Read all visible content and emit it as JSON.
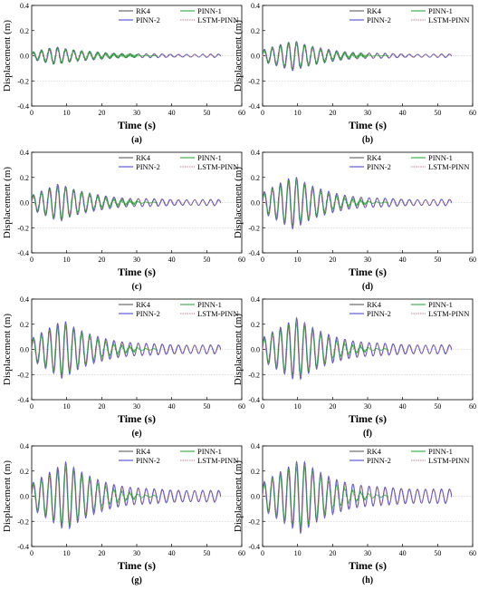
{
  "colors": {
    "rk4": "#6b6b6b",
    "pinn1": "#1f9e2a",
    "pinn2": "#3b3bd6",
    "lstm": "#c9809a",
    "axis": "#000000",
    "zero_line": "#bdbdbd"
  },
  "chart_data": [
    {
      "type": "line",
      "panel_label": "(a)",
      "xlabel": "Time (s)",
      "ylabel": "Displacement (m)",
      "xlim": [
        0,
        60
      ],
      "ylim": [
        -0.4,
        0.4
      ],
      "xticks": [
        "0",
        "10",
        "20",
        "30",
        "40",
        "50",
        "60"
      ],
      "yticks": [
        "0.4",
        "0.2",
        "0.0",
        "-0.2",
        "-0.4"
      ],
      "legend": [
        "RK4",
        "PINN-2",
        "PINN-1",
        "LSTM-PINN"
      ],
      "legend_position": "top-right",
      "series_names": [
        "RK4",
        "PINN-1",
        "PINN-2",
        "LSTM-PINN"
      ],
      "duration": 54,
      "peak_amplitude": 0.07,
      "peak_time": 7,
      "period": 2.3,
      "end_amplitude": 0.01
    },
    {
      "type": "line",
      "panel_label": "(b)",
      "xlabel": "Time (s)",
      "ylabel": "Displacement (m)",
      "xlim": [
        0,
        60
      ],
      "ylim": [
        -0.4,
        0.4
      ],
      "xticks": [
        "0",
        "10",
        "20",
        "30",
        "40",
        "50",
        "60"
      ],
      "yticks": [
        "0.4",
        "0.2",
        "0.0",
        "-0.2",
        "-0.4"
      ],
      "legend": [
        "RK4",
        "PINN-2",
        "PINN-1",
        "LSTM-PINN"
      ],
      "legend_position": "top-right",
      "series_names": [
        "RK4",
        "PINN-1",
        "PINN-2",
        "LSTM-PINN"
      ],
      "duration": 54,
      "peak_amplitude": 0.12,
      "peak_time": 9,
      "period": 2.3,
      "end_amplitude": 0.01
    },
    {
      "type": "line",
      "panel_label": "(c)",
      "xlabel": "Time (s)",
      "ylabel": "Displacement (m)",
      "xlim": [
        0,
        60
      ],
      "ylim": [
        -0.4,
        0.4
      ],
      "xticks": [
        "0",
        "10",
        "20",
        "30",
        "40",
        "50",
        "60"
      ],
      "yticks": [
        "0.4",
        "0.2",
        "0.0",
        "-0.2",
        "-0.4"
      ],
      "legend": [
        "RK4",
        "PINN-2",
        "PINN-1",
        "LSTM-PINN"
      ],
      "legend_position": "top-right",
      "series_names": [
        "RK4",
        "PINN-1",
        "PINN-2",
        "LSTM-PINN"
      ],
      "duration": 54,
      "peak_amplitude": 0.15,
      "peak_time": 8,
      "period": 2.3,
      "end_amplitude": 0.02
    },
    {
      "type": "line",
      "panel_label": "(d)",
      "xlabel": "Time (s)",
      "ylabel": "Displacement (m)",
      "xlim": [
        0,
        60
      ],
      "ylim": [
        -0.4,
        0.4
      ],
      "xticks": [
        "0",
        "10",
        "20",
        "30",
        "40",
        "50",
        "60"
      ],
      "yticks": [
        "0.4",
        "0.2",
        "0.0",
        "-0.2",
        "-0.4"
      ],
      "legend": [
        "RK4",
        "PINN-2",
        "PINN-1",
        "LSTM-PINN"
      ],
      "legend_position": "top-right",
      "series_names": [
        "RK4",
        "PINN-1",
        "PINN-2",
        "LSTM-PINN"
      ],
      "duration": 54,
      "peak_amplitude": 0.21,
      "peak_time": 9,
      "period": 2.3,
      "end_amplitude": 0.02
    },
    {
      "type": "line",
      "panel_label": "(e)",
      "xlabel": "Time (s)",
      "ylabel": "Displacement (m)",
      "xlim": [
        0,
        60
      ],
      "ylim": [
        -0.4,
        0.4
      ],
      "xticks": [
        "0",
        "10",
        "20",
        "30",
        "40",
        "50",
        "60"
      ],
      "yticks": [
        "0.4",
        "0.2",
        "0.0",
        "-0.2",
        "-0.4"
      ],
      "legend": [
        "RK4",
        "PINN-2",
        "PINN-1",
        "LSTM-PINN"
      ],
      "legend_position": "top-right",
      "series_names": [
        "RK4",
        "PINN-1",
        "PINN-2",
        "LSTM-PINN"
      ],
      "duration": 54,
      "peak_amplitude": 0.23,
      "peak_time": 9,
      "period": 2.3,
      "end_amplitude": 0.03
    },
    {
      "type": "line",
      "panel_label": "(f)",
      "xlabel": "Time (s)",
      "ylabel": "Displacement (m)",
      "xlim": [
        0,
        60
      ],
      "ylim": [
        -0.4,
        0.4
      ],
      "xticks": [
        "0",
        "10",
        "20",
        "30",
        "40",
        "50",
        "60"
      ],
      "yticks": [
        "0.4",
        "0.2",
        "0.0",
        "-0.2",
        "-0.4"
      ],
      "legend": [
        "RK4",
        "PINN-2",
        "PINN-1",
        "LSTM-PINN"
      ],
      "legend_position": "top-right",
      "series_names": [
        "RK4",
        "PINN-1",
        "PINN-2",
        "LSTM-PINN"
      ],
      "duration": 54,
      "peak_amplitude": 0.25,
      "peak_time": 10,
      "period": 2.3,
      "end_amplitude": 0.03
    },
    {
      "type": "line",
      "panel_label": "(g)",
      "xlabel": "Time (s)",
      "ylabel": "Displacement (m)",
      "xlim": [
        0,
        60
      ],
      "ylim": [
        -0.4,
        0.4
      ],
      "xticks": [
        "0",
        "10",
        "20",
        "30",
        "40",
        "50",
        "60"
      ],
      "yticks": [
        "0.4",
        "0.2",
        "0.0",
        "-0.2",
        "-0.4"
      ],
      "legend": [
        "RK4",
        "PINN-2",
        "PINN-1",
        "LSTM-PINN"
      ],
      "legend_position": "top-right",
      "series_names": [
        "RK4",
        "PINN-1",
        "PINN-2",
        "LSTM-PINN"
      ],
      "duration": 54,
      "peak_amplitude": 0.27,
      "peak_time": 10,
      "period": 2.3,
      "end_amplitude": 0.04
    },
    {
      "type": "line",
      "panel_label": "(h)",
      "xlabel": "Time (s)",
      "ylabel": "Displacement (m)",
      "xlim": [
        0,
        60
      ],
      "ylim": [
        -0.4,
        0.4
      ],
      "xticks": [
        "0",
        "10",
        "20",
        "30",
        "40",
        "50",
        "60"
      ],
      "yticks": [
        "0.4",
        "0.2",
        "0.0",
        "-0.2",
        "-0.4"
      ],
      "legend": [
        "RK4",
        "PINN-2",
        "PINN-1",
        "LSTM-PINN"
      ],
      "legend_position": "top-right",
      "series_names": [
        "RK4",
        "PINN-1",
        "PINN-2",
        "LSTM-PINN"
      ],
      "duration": 54,
      "peak_amplitude": 0.29,
      "peak_time": 11,
      "period": 2.3,
      "end_amplitude": 0.05
    }
  ]
}
